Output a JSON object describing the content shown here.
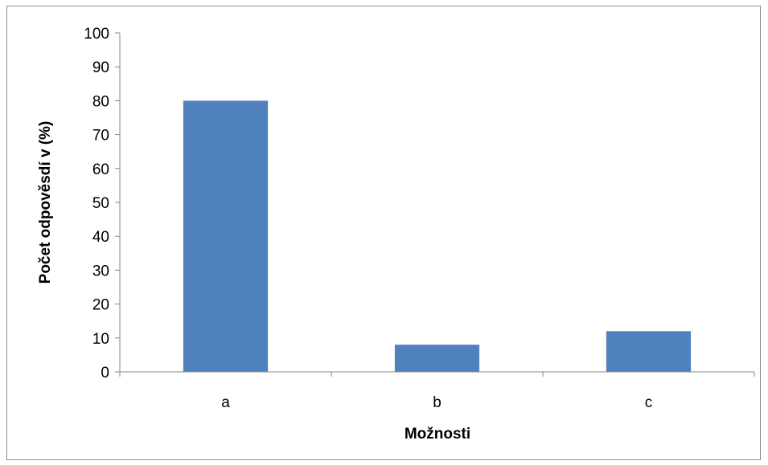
{
  "chart_data": {
    "type": "bar",
    "title": "",
    "categories": [
      "a",
      "b",
      "c"
    ],
    "values": [
      80,
      8,
      12
    ],
    "xlabel": "Možnosti",
    "ylabel": "Počet odpověsdí v (%)",
    "ylim": [
      0,
      100
    ],
    "ytick_step": 10,
    "grid": false,
    "legend": "none",
    "bar_color": "#4F81BD",
    "axis_color": "#868686"
  }
}
